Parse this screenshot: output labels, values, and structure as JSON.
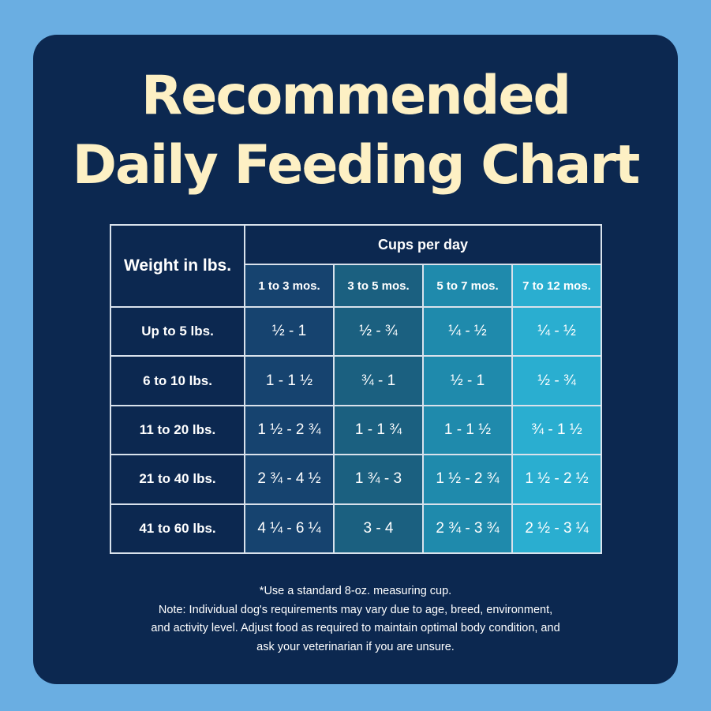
{
  "title_line1": "Recommended",
  "title_line2": "Daily Feeding Chart",
  "chart_data": {
    "type": "table",
    "row_header": "Weight in lbs.",
    "group_header": "Cups per day",
    "columns": [
      "1 to 3 mos.",
      "3 to 5 mos.",
      "5 to 7 mos.",
      "7 to 12 mos."
    ],
    "rows": [
      {
        "label": "Up to 5 lbs.",
        "values": [
          "½  - 1",
          "½  - ¾",
          "¼ - ½",
          "¼  - ½"
        ]
      },
      {
        "label": "6 to 10 lbs.",
        "values": [
          "1 - 1 ½",
          "¾ - 1",
          "½ - 1",
          "½ - ¾"
        ]
      },
      {
        "label": "11 to 20 lbs.",
        "values": [
          "1 ½  - 2 ¾",
          "1 - 1 ¾",
          "1 - 1 ½",
          "¾ - 1 ½"
        ]
      },
      {
        "label": "21 to 40 lbs.",
        "values": [
          "2 ¾ - 4 ½",
          "1 ¾ - 3",
          "1 ½ - 2 ¾",
          "1 ½ - 2 ½"
        ]
      },
      {
        "label": "41 to 60 lbs.",
        "values": [
          "4 ¼  - 6 ¼",
          "3 - 4",
          "2 ¾  - 3 ¾",
          "2 ½  - 3 ¼"
        ]
      }
    ]
  },
  "footnote": [
    "*Use a standard 8-oz. measuring cup.",
    "Note: Individual dog's requirements may vary due to age, breed, environment,",
    "and activity level. Adjust food as required to maintain optimal body condition, and",
    "ask your veterinarian if you are unsure."
  ],
  "colors": {
    "page_background": "#6aaee2",
    "panel": "#0c2850",
    "title": "#fdf0c4",
    "column_shades": [
      "#16436f",
      "#1b6080",
      "#1f8aac",
      "#2aaed0"
    ]
  }
}
